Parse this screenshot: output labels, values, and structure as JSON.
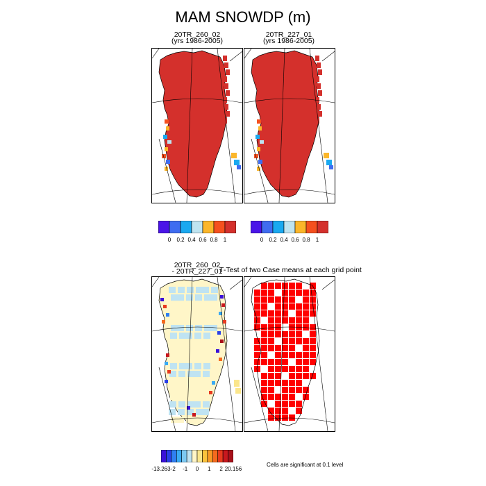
{
  "figure": {
    "title": "MAM SNOWDP (m)",
    "note": "Cells are significant at 0.1 level"
  },
  "panels": [
    {
      "id": "case1",
      "title_line1": "20TR_260_02",
      "title_line2": "(yrs 1986-2005)"
    },
    {
      "id": "case2",
      "title_line1": "20TR_227_01",
      "title_line2": "(yrs 1986-2005)"
    },
    {
      "id": "diff",
      "title_line1": "20TR_260_02",
      "title_line2": "- 20TR_227_01"
    },
    {
      "id": "ttest",
      "title_line1": "T-Test of two Case means at each grid point"
    }
  ],
  "chart_data": [
    {
      "type": "heatmap",
      "title": "20TR_260_02 (yrs 1986-2005)",
      "colorbar": {
        "colors": [
          "#4a14e8",
          "#3f6cf0",
          "#1aa9f0",
          "#bfe4f0",
          "#fbb62a",
          "#f5501e",
          "#d4302c"
        ],
        "tick_labels": [
          "0",
          "0.2",
          "0.4",
          "0.6",
          "0.8",
          "1"
        ]
      },
      "dominant_value": 1
    },
    {
      "type": "heatmap",
      "title": "20TR_227_01 (yrs 1986-2005)",
      "colorbar": {
        "colors": [
          "#4a14e8",
          "#3f6cf0",
          "#1aa9f0",
          "#bfe4f0",
          "#fbb62a",
          "#f5501e",
          "#d4302c"
        ],
        "tick_labels": [
          "0",
          "0.2",
          "0.4",
          "0.6",
          "0.8",
          "1"
        ]
      },
      "dominant_value": 1
    },
    {
      "type": "heatmap",
      "title": "20TR_260_02 - 20TR_227_01",
      "colorbar": {
        "colors": [
          "#3a10d8",
          "#2a40e8",
          "#2f7ff2",
          "#39aaf4",
          "#7cc9f2",
          "#bfe3f2",
          "#fff6c8",
          "#fbe68c",
          "#fbc33c",
          "#f99a26",
          "#f56a1e",
          "#e83a1e",
          "#c8181e",
          "#a8101a"
        ],
        "tick_labels": [
          "-13.263",
          "-2",
          "-1",
          "0",
          "1",
          "2",
          "20.156"
        ]
      }
    },
    {
      "type": "heatmap",
      "title": "T-Test of two Case means at each grid point",
      "significance_color": "#ff0000"
    }
  ]
}
